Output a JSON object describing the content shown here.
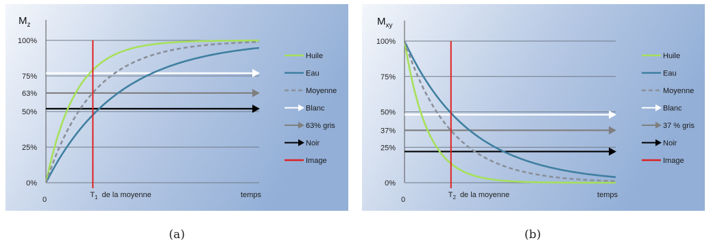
{
  "chart_data": [
    {
      "type": "line",
      "panel_caption": "(a)",
      "ylabel_main": "M",
      "ylabel_sub": "z",
      "x_origin_label": "0",
      "x_end_label": "temps",
      "marker_label_sub": "1",
      "marker_label_prefix": "T",
      "marker_label_suffix": "de la moyenne",
      "yticks": [
        {
          "label": "100%",
          "value": 100
        },
        {
          "label": "75%",
          "value": 75
        },
        {
          "label": "63%",
          "value": 63
        },
        {
          "label": "50%",
          "value": 50
        },
        {
          "label": "25%",
          "value": 25
        },
        {
          "label": "0%",
          "value": 0
        }
      ],
      "ylim": [
        0,
        100
      ],
      "xlim": [
        0,
        10
      ],
      "marker_x": 2.2,
      "curve_kind": "recovery",
      "series": [
        {
          "name": "Huile",
          "tau": 1.4,
          "color": "#a6e05a",
          "dash": ""
        },
        {
          "name": "Eau",
          "tau": 3.4,
          "color": "#3f7fa0",
          "dash": ""
        },
        {
          "name": "Moyenne",
          "tau": 2.2,
          "color": "#8a8f99",
          "dash": "6,4"
        }
      ],
      "arrows": [
        {
          "name": "Blanc",
          "value": 77,
          "color": "#ffffff"
        },
        {
          "name": "63% gris",
          "value": 63,
          "color": "#7f7f7f"
        },
        {
          "name": "Noir",
          "value": 52,
          "color": "#000000"
        }
      ],
      "marker": {
        "name": "Image",
        "color": "#e02020"
      }
    },
    {
      "type": "line",
      "panel_caption": "(b)",
      "ylabel_main": "M",
      "ylabel_sub": "xy",
      "x_origin_label": "0",
      "x_end_label": "temps",
      "marker_label_sub": "2",
      "marker_label_prefix": "T",
      "marker_label_suffix": "de la moyenne",
      "yticks": [
        {
          "label": "100%",
          "value": 100
        },
        {
          "label": "75%",
          "value": 75
        },
        {
          "label": "50%",
          "value": 50
        },
        {
          "label": "37%",
          "value": 37
        },
        {
          "label": "25%",
          "value": 25
        },
        {
          "label": "0%",
          "value": 0
        }
      ],
      "ylim": [
        0,
        100
      ],
      "xlim": [
        0,
        10
      ],
      "marker_x": 2.2,
      "curve_kind": "decay",
      "series": [
        {
          "name": "Huile",
          "tau": 1.1,
          "color": "#a6e05a",
          "dash": ""
        },
        {
          "name": "Eau",
          "tau": 3.1,
          "color": "#3f7fa0",
          "dash": ""
        },
        {
          "name": "Moyenne",
          "tau": 2.2,
          "color": "#8a8f99",
          "dash": "6,4"
        }
      ],
      "arrows": [
        {
          "name": "Blanc",
          "value": 48,
          "color": "#ffffff"
        },
        {
          "name": "37 % gris",
          "value": 37,
          "color": "#7f7f7f"
        },
        {
          "name": "Noir",
          "value": 22,
          "color": "#000000"
        }
      ],
      "marker": {
        "name": "Image",
        "color": "#e02020"
      }
    }
  ]
}
